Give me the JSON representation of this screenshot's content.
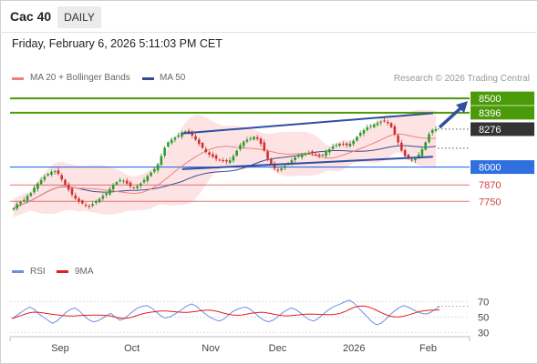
{
  "header": {
    "symbol": "Cac 40",
    "period": "DAILY"
  },
  "timestamp": "Friday, February 6, 2026 5:11:03 PM CET",
  "legend": {
    "ma20_label": "MA 20 + Bollinger Bands",
    "ma50_label": "MA 50",
    "rsi_label": "RSI",
    "rsi_ma_label": "9MA",
    "credit": "Research © 2026 Trading Central"
  },
  "colors": {
    "ma20": "#f08080",
    "ma50": "#3b4a8f",
    "bollinger_fill": "#fde3e3",
    "rsi": "#6f8fe0",
    "rsi_ma": "#e02020",
    "resistance": "#4a9a0a",
    "support": "#2f6fe0",
    "weak_level": "#d04040",
    "current": "#333333",
    "trend": "#2f4f9f",
    "candle_up": "#2e9a2e",
    "candle_down": "#d03030"
  },
  "chart_data": {
    "type": "candlestick",
    "price_axis": {
      "ylim": [
        7520,
        8660
      ]
    },
    "levels": [
      {
        "name": "resistance-2",
        "value": 8500,
        "label": "8500",
        "style": "resistance"
      },
      {
        "name": "resistance-1",
        "value": 8396,
        "label": "8396",
        "style": "resistance"
      },
      {
        "name": "current-price",
        "value": 8276,
        "label": "8276",
        "style": "current"
      },
      {
        "name": "support-1",
        "value": 8000,
        "label": "8000",
        "style": "support"
      },
      {
        "name": "support-2",
        "value": 7870,
        "label": "7870",
        "style": "weak"
      },
      {
        "name": "support-3",
        "value": 7750,
        "label": "7750",
        "style": "weak"
      }
    ],
    "time_axis": {
      "start": "2025-08-11",
      "end": "2026-02-06",
      "ticks": [
        {
          "label": "Sep",
          "date": "2025-09-01"
        },
        {
          "label": "Oct",
          "date": "2025-10-01"
        },
        {
          "label": "Nov",
          "date": "2025-11-03"
        },
        {
          "label": "Dec",
          "date": "2025-12-01"
        },
        {
          "label": "2026",
          "date": "2026-01-02"
        },
        {
          "label": "Feb",
          "date": "2026-02-02"
        }
      ]
    },
    "closes": [
      7700,
      7730,
      7745,
      7760,
      7790,
      7810,
      7850,
      7880,
      7905,
      7930,
      7950,
      7965,
      7970,
      7950,
      7910,
      7870,
      7835,
      7800,
      7770,
      7750,
      7735,
      7720,
      7715,
      7730,
      7750,
      7770,
      7790,
      7810,
      7840,
      7870,
      7890,
      7905,
      7900,
      7880,
      7860,
      7850,
      7860,
      7880,
      7905,
      7935,
      7960,
      7985,
      8020,
      8080,
      8140,
      8180,
      8200,
      8215,
      8230,
      8250,
      8260,
      8250,
      8230,
      8200,
      8170,
      8140,
      8110,
      8090,
      8075,
      8060,
      8050,
      8045,
      8040,
      8050,
      8080,
      8120,
      8160,
      8185,
      8200,
      8210,
      8220,
      8205,
      8170,
      8120,
      8060,
      8020,
      7990,
      7980,
      7990,
      8010,
      8030,
      8050,
      8070,
      8080,
      8090,
      8100,
      8105,
      8100,
      8090,
      8080,
      8090,
      8110,
      8130,
      8150,
      8160,
      8170,
      8165,
      8160,
      8170,
      8190,
      8220,
      8250,
      8270,
      8290,
      8300,
      8310,
      8320,
      8330,
      8335,
      8320,
      8290,
      8240,
      8180,
      8120,
      8080,
      8060,
      8050,
      8060,
      8090,
      8130,
      8180,
      8240,
      8270,
      8276
    ],
    "trend_lines": [
      {
        "name": "upper-channel",
        "from": {
          "date": "2025-10-22",
          "value": 8245
        },
        "to": {
          "date": "2026-02-04",
          "value": 8392
        }
      },
      {
        "name": "lower-channel",
        "from": {
          "date": "2025-10-22",
          "value": 7985
        },
        "to": {
          "date": "2026-02-04",
          "value": 8075
        }
      }
    ],
    "rsi": {
      "axis_ticks": [
        70,
        50,
        30
      ],
      "ylim": [
        20,
        80
      ],
      "values": [
        48,
        52,
        56,
        60,
        63,
        60,
        54,
        50,
        46,
        42,
        45,
        50,
        56,
        60,
        62,
        58,
        52,
        47,
        44,
        45,
        48,
        52,
        55,
        50,
        46,
        48,
        53,
        58,
        62,
        64,
        65,
        62,
        57,
        52,
        49,
        50,
        53,
        57,
        61,
        65,
        67,
        64,
        59,
        54,
        50,
        47,
        45,
        47,
        52,
        57,
        60,
        62,
        63,
        60,
        55,
        50,
        46,
        44,
        46,
        50,
        55,
        59,
        62,
        60,
        56,
        51,
        47,
        45,
        48,
        53,
        58,
        62,
        65,
        67,
        70,
        72,
        68,
        62,
        56,
        50,
        44,
        40,
        42,
        47,
        53,
        58,
        62,
        65,
        63,
        60,
        57,
        55,
        54,
        56,
        60,
        64
      ]
    }
  }
}
